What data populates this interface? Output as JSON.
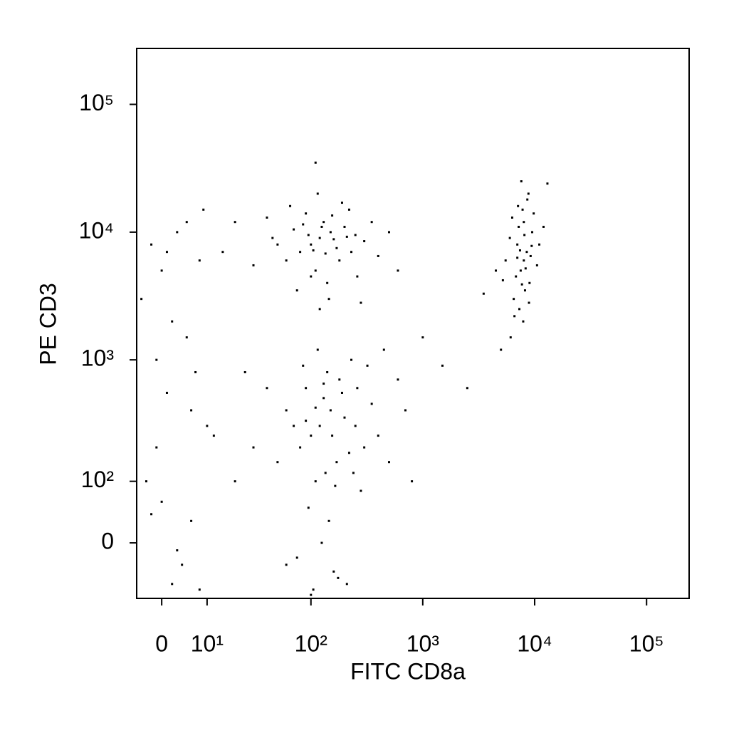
{
  "chart_data": {
    "type": "scatter",
    "xlabel": "FITC CD8a",
    "ylabel": "PE CD3",
    "color": "#000000",
    "xscale": "biexponential",
    "yscale": "biexponential",
    "xlim": [
      -5,
      240000
    ],
    "ylim": [
      -87,
      274000
    ],
    "xticks": [
      0,
      {
        "value": 10,
        "label": "10¹"
      },
      {
        "value": 100,
        "label": "10²"
      },
      {
        "value": 1000,
        "label": "10³"
      },
      {
        "value": 10000,
        "label": "10⁴"
      },
      {
        "value": 100000,
        "label": "10⁵"
      }
    ],
    "yticks": [
      0,
      {
        "value": 100,
        "label": "10²"
      },
      {
        "value": 1000,
        "label": "10³"
      },
      {
        "value": 10000,
        "label": "10⁴"
      },
      {
        "value": 100000,
        "label": "10⁵"
      }
    ],
    "x": [
      8000,
      7500,
      8500,
      7000,
      9000,
      6500,
      8000,
      7800,
      9500,
      6000,
      8200,
      7300,
      8800,
      7600,
      10500,
      11000,
      5500,
      6800,
      9200,
      8100,
      7200,
      6300,
      7900,
      6100,
      8600,
      9800,
      5200,
      7400,
      8300,
      7700,
      12000,
      6600,
      8900,
      7100,
      9400,
      5000,
      4500,
      3500,
      13000,
      7000,
      120,
      100,
      150,
      80,
      200,
      60,
      250,
      130,
      90,
      170,
      110,
      300,
      140,
      70,
      50,
      40,
      220,
      180,
      95,
      160,
      125,
      105,
      350,
      400,
      30,
      260,
      75,
      190,
      115,
      145,
      85,
      210,
      135,
      65,
      500,
      280,
      120,
      155,
      100,
      230,
      45,
      600,
      20,
      15,
      110,
      120,
      100,
      150,
      80,
      200,
      130,
      90,
      170,
      110,
      140,
      60,
      250,
      300,
      180,
      95,
      125,
      160,
      105,
      75,
      210,
      135,
      85,
      230,
      115,
      190,
      70,
      50,
      40,
      350,
      400,
      500,
      600,
      700,
      800,
      280,
      145,
      175,
      100,
      60,
      30,
      25,
      20,
      155,
      220,
      130,
      110,
      90,
      165,
      240,
      260,
      320,
      450,
      1000,
      1500,
      2500,
      -2,
      0,
      3,
      1,
      5,
      -4,
      8,
      2,
      6,
      -1,
      4,
      0,
      7,
      -3,
      10,
      2,
      9,
      -2,
      5,
      1,
      12,
      3,
      -1,
      6,
      8
    ],
    "y": [
      6000,
      5000,
      7000,
      8000,
      4000,
      3000,
      12000,
      15000,
      10000,
      9000,
      3500,
      2500,
      20000,
      25000,
      5500,
      8000,
      6000,
      4500,
      6500,
      9500,
      11000,
      13000,
      2000,
      1500,
      18000,
      14000,
      4200,
      7200,
      5200,
      3900,
      11000,
      2200,
      2800,
      16000,
      7800,
      1200,
      5000,
      3300,
      24000,
      6300,
      9000,
      8000,
      10000,
      7000,
      11000,
      6000,
      9500,
      12000,
      14000,
      7500,
      5000,
      8500,
      4000,
      10500,
      8000,
      13000,
      15000,
      6000,
      9500,
      8800,
      11000,
      7200,
      12000,
      6500,
      5500,
      4500,
      3500,
      17000,
      20000,
      3000,
      11500,
      9200,
      6800,
      16000,
      10000,
      2800,
      2500,
      13500,
      4500,
      7000,
      9000,
      5000,
      12000,
      7000,
      35000,
      300,
      250,
      400,
      200,
      350,
      500,
      600,
      150,
      100,
      800,
      400,
      300,
      200,
      700,
      50,
      0,
      -40,
      -70,
      -20,
      -60,
      120,
      900,
      1000,
      1200,
      550,
      300,
      150,
      600,
      450,
      250,
      150,
      700,
      400,
      100,
      80,
      30,
      -50,
      -80,
      -30,
      200,
      800,
      100,
      250,
      180,
      650,
      420,
      330,
      90,
      120,
      600,
      900,
      1200,
      1500,
      900,
      600,
      8000,
      5000,
      10000,
      7000,
      12000,
      3000,
      6000,
      2000,
      400,
      200,
      -30,
      60,
      800,
      100,
      300,
      -60,
      15000,
      40,
      1500,
      550,
      250,
      -10,
      1000,
      30,
      -70
    ]
  }
}
